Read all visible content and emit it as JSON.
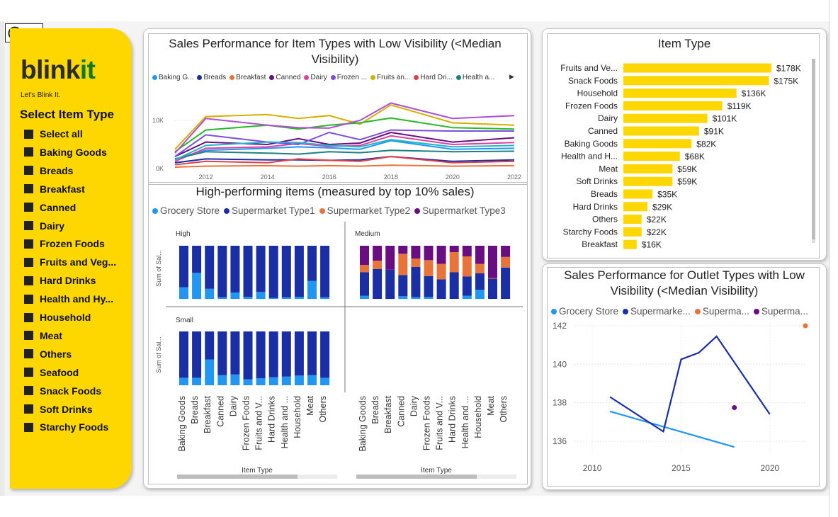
{
  "brand": {
    "name_main": "blink",
    "name_accent": "it",
    "tagline": "Let's Blink It."
  },
  "slicer": {
    "title": "Select Item Type",
    "items": [
      "Select all",
      "Baking Goods",
      "Breads",
      "Breakfast",
      "Canned",
      "Dairy",
      "Frozen Foods",
      "Fruits and Veg...",
      "Hard Drinks",
      "Health and Hy...",
      "Household",
      "Meat",
      "Others",
      "Seafood",
      "Snack Foods",
      "Soft Drinks",
      "Starchy Foods"
    ]
  },
  "colors": {
    "sidebar": "#FFD700",
    "bar": "#FFD700",
    "grocery": "#2196F3",
    "super1": "#1A2FA6",
    "super2": "#E8743B",
    "super3": "#6A0D83"
  },
  "line_chart": {
    "title": "Sales Performance for Item Types with Low Visibility (<Median Visibility)",
    "legend": [
      {
        "label": "Baking G...",
        "color": "#2196F3"
      },
      {
        "label": "Breads",
        "color": "#1A2FA6"
      },
      {
        "label": "Breakfast",
        "color": "#E8743B"
      },
      {
        "label": "Canned",
        "color": "#6A0D83"
      },
      {
        "label": "Dairy",
        "color": "#E040A0"
      },
      {
        "label": "Frozen ...",
        "color": "#7B4FE0"
      },
      {
        "label": "Fruits an...",
        "color": "#D4B000"
      },
      {
        "label": "Hard Dri...",
        "color": "#E0404A"
      },
      {
        "label": "Health a...",
        "color": "#1E8080"
      }
    ],
    "y_ticks": [
      "10K",
      "0K"
    ],
    "x_ticks": [
      "2012",
      "2014",
      "2016",
      "2018",
      "2020",
      "2022"
    ]
  },
  "high_perf": {
    "title": "High-performing items (measured by top 10% sales)",
    "legend": [
      {
        "label": "Grocery Store",
        "color": "#2196F3"
      },
      {
        "label": "Supermarket Type1",
        "color": "#1A2FA6"
      },
      {
        "label": "Supermarket Type2",
        "color": "#E8743B"
      },
      {
        "label": "Supermarket Type3",
        "color": "#6A0D83"
      }
    ],
    "facet_high": "High",
    "facet_medium": "Medium",
    "facet_small": "Small",
    "y_label": "Sum of Sal...",
    "x_title": "Item Type",
    "categories": [
      "Baking Goods",
      "Breads",
      "Breakfast",
      "Canned",
      "Dairy",
      "Frozen Foods",
      "Fruits and V...",
      "Hard Drinks",
      "Health and ...",
      "Household",
      "Meat",
      "Others"
    ]
  },
  "item_type_chart": {
    "title": "Item Type",
    "rows": [
      {
        "label": "Fruits and Ve...",
        "value_text": "$178K",
        "value": 178
      },
      {
        "label": "Snack Foods",
        "value_text": "$175K",
        "value": 175
      },
      {
        "label": "Household",
        "value_text": "$136K",
        "value": 136
      },
      {
        "label": "Frozen Foods",
        "value_text": "$119K",
        "value": 119
      },
      {
        "label": "Dairy",
        "value_text": "$101K",
        "value": 101
      },
      {
        "label": "Canned",
        "value_text": "$91K",
        "value": 91
      },
      {
        "label": "Baking Goods",
        "value_text": "$82K",
        "value": 82
      },
      {
        "label": "Health and H...",
        "value_text": "$68K",
        "value": 68
      },
      {
        "label": "Meat",
        "value_text": "$59K",
        "value": 59
      },
      {
        "label": "Soft Drinks",
        "value_text": "$59K",
        "value": 59
      },
      {
        "label": "Breads",
        "value_text": "$35K",
        "value": 35
      },
      {
        "label": "Hard Drinks",
        "value_text": "$29K",
        "value": 29
      },
      {
        "label": "Others",
        "value_text": "$22K",
        "value": 22
      },
      {
        "label": "Starchy Foods",
        "value_text": "$22K",
        "value": 22
      },
      {
        "label": "Breakfast",
        "value_text": "$16K",
        "value": 16
      }
    ]
  },
  "outlet_chart": {
    "title": "Sales Performance for Outlet Types with Low Visibility (<Median Visibility)",
    "legend": [
      {
        "label": "Grocery Store",
        "color": "#2196F3"
      },
      {
        "label": "Supermarke...",
        "color": "#1A2FA6"
      },
      {
        "label": "Superma...",
        "color": "#E8743B"
      },
      {
        "label": "Superma...",
        "color": "#6A0D83"
      }
    ],
    "y_ticks": [
      "142",
      "140",
      "138",
      "136"
    ],
    "x_ticks": [
      "2010",
      "2015",
      "2020"
    ]
  },
  "chart_data": [
    {
      "type": "line",
      "title": "Sales Performance for Item Types with Low Visibility (<Median Visibility)",
      "x": [
        2011,
        2012,
        2014,
        2015,
        2016,
        2017,
        2018,
        2020,
        2022
      ],
      "ylim": [
        0,
        15000
      ],
      "series": [
        {
          "name": "Baking G...",
          "color": "#2196F3",
          "values": [
            2000,
            3800,
            4200,
            4500,
            4300,
            4000,
            5800,
            4000,
            4200
          ]
        },
        {
          "name": "Breads",
          "color": "#1A2FA6",
          "values": [
            1200,
            2000,
            1800,
            1800,
            1700,
            1800,
            2500,
            1500,
            1800
          ]
        },
        {
          "name": "Breakfast",
          "color": "#E8743B",
          "values": [
            300,
            500,
            600,
            500,
            600,
            500,
            700,
            500,
            600
          ]
        },
        {
          "name": "Canned",
          "color": "#6A0D83",
          "values": [
            2500,
            5500,
            5000,
            6200,
            5000,
            5300,
            7500,
            5500,
            6400
          ]
        },
        {
          "name": "Dairy",
          "color": "#E040A0",
          "values": [
            1500,
            4200,
            4500,
            5200,
            4600,
            4800,
            6800,
            5000,
            5400
          ]
        },
        {
          "name": "Frozen ...",
          "color": "#7B4FE0",
          "values": [
            2500,
            7000,
            5500,
            5000,
            7500,
            6000,
            8000,
            7800,
            7800
          ]
        },
        {
          "name": "Fruits an...",
          "color": "#D4B000",
          "values": [
            4000,
            10800,
            11200,
            10400,
            11000,
            9200,
            13200,
            9500,
            9000
          ]
        },
        {
          "name": "Hard Dri...",
          "color": "#E0404A",
          "values": [
            800,
            1500,
            1200,
            2000,
            1700,
            1500,
            2500,
            1200,
            1500
          ]
        },
        {
          "name": "Health a...",
          "color": "#1E8080",
          "values": [
            2000,
            3500,
            3200,
            3000,
            3500,
            3300,
            3800,
            3500,
            3600
          ]
        },
        {
          "color": "#28B828",
          "values": [
            3500,
            8000,
            9000,
            8200,
            9000,
            9500,
            10500,
            8500,
            8200
          ]
        },
        {
          "color": "#B050D0",
          "values": [
            3200,
            10400,
            9000,
            8500,
            8400,
            10000,
            13600,
            10400,
            11000
          ]
        },
        {
          "color": "#20B8C8",
          "values": [
            1800,
            4800,
            5500,
            5400,
            4800,
            4500,
            6000,
            4500,
            4800
          ]
        }
      ]
    },
    {
      "type": "bar",
      "title": "High-performing items (measured by top 10% sales)",
      "facet": "High",
      "categories": [
        "Baking Goods",
        "Breads",
        "Breakfast",
        "Canned",
        "Dairy",
        "Frozen Foods",
        "Fruits and V...",
        "Hard Drinks",
        "Health and ...",
        "Household",
        "Meat",
        "Others"
      ],
      "series": [
        {
          "name": "Grocery Store",
          "values": [
            22,
            49,
            19,
            3,
            12,
            4,
            13,
            2,
            3,
            4,
            34,
            3
          ]
        },
        {
          "name": "Supermarket Type1",
          "values": [
            78,
            51,
            81,
            97,
            88,
            96,
            87,
            98,
            97,
            96,
            66,
            97
          ]
        }
      ]
    },
    {
      "type": "bar",
      "title": "High-performing items (measured by top 10% sales)",
      "facet": "Medium",
      "categories": [
        "Baking Goods",
        "Breads",
        "Breakfast",
        "Canned",
        "Dairy",
        "Frozen Foods",
        "Fruits and V...",
        "Hard Drinks",
        "Health and ...",
        "Household",
        "Meat",
        "Others"
      ],
      "series": [
        {
          "name": "Grocery Store",
          "values": [
            6,
            0,
            0,
            5,
            3,
            4,
            0,
            0,
            6,
            17,
            0,
            0
          ]
        },
        {
          "name": "Supermarket Type1",
          "values": [
            44,
            56,
            55,
            40,
            57,
            39,
            37,
            50,
            36,
            31,
            38,
            59
          ]
        },
        {
          "name": "Supermarket Type2",
          "values": [
            14,
            16,
            0,
            40,
            16,
            30,
            29,
            38,
            38,
            18,
            1,
            20
          ]
        },
        {
          "name": "Supermarket Type3",
          "values": [
            36,
            28,
            45,
            15,
            24,
            27,
            34,
            12,
            20,
            34,
            61,
            21
          ]
        }
      ]
    },
    {
      "type": "bar",
      "title": "High-performing items (measured by top 10% sales)",
      "facet": "Small",
      "categories": [
        "Baking Goods",
        "Breads",
        "Breakfast",
        "Canned",
        "Dairy",
        "Frozen Foods",
        "Fruits and V...",
        "Hard Drinks",
        "Health and ...",
        "Household",
        "Meat",
        "Others"
      ],
      "series": [
        {
          "name": "Grocery Store",
          "values": [
            14,
            14,
            48,
            19,
            20,
            11,
            13,
            15,
            16,
            18,
            19,
            14
          ]
        },
        {
          "name": "Supermarket Type1",
          "values": [
            86,
            86,
            52,
            81,
            80,
            89,
            87,
            85,
            84,
            82,
            81,
            86
          ]
        }
      ]
    },
    {
      "type": "bar",
      "title": "Item Type",
      "categories": [
        "Fruits and Ve...",
        "Snack Foods",
        "Household",
        "Frozen Foods",
        "Dairy",
        "Canned",
        "Baking Goods",
        "Health and H...",
        "Meat",
        "Soft Drinks",
        "Breads",
        "Hard Drinks",
        "Others",
        "Starchy Foods",
        "Breakfast"
      ],
      "values": [
        178,
        175,
        136,
        119,
        101,
        91,
        82,
        68,
        59,
        59,
        35,
        29,
        22,
        22,
        16
      ]
    },
    {
      "type": "line",
      "title": "Sales Performance for Outlet Types with Low Visibility (<Median Visibility)",
      "ylim": [
        135.5,
        142
      ],
      "xlim": [
        2009,
        2022
      ],
      "series": [
        {
          "name": "Grocery Store",
          "color": "#2196F3",
          "points": [
            [
              2011,
              137.55
            ],
            [
              2018,
              135.7
            ]
          ]
        },
        {
          "name": "Supermarke...",
          "color": "#1A2FA6",
          "points": [
            [
              2011,
              138.3
            ],
            [
              2014,
              136.5
            ],
            [
              2015,
              140.25
            ],
            [
              2016,
              140.6
            ],
            [
              2017,
              141.45
            ],
            [
              2020,
              137.4
            ]
          ]
        },
        {
          "name": "Superma...",
          "color": "#E8743B",
          "points": [
            [
              2022,
              142.0
            ]
          ]
        },
        {
          "name": "Superma...",
          "color": "#6A0D83",
          "points": [
            [
              2018,
              137.75
            ]
          ]
        }
      ]
    }
  ]
}
